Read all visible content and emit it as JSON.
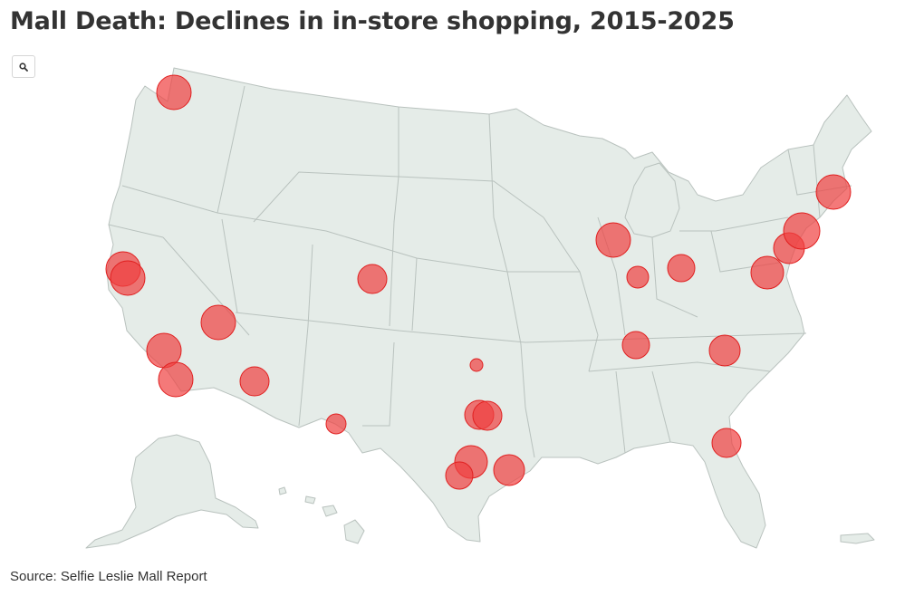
{
  "title": "Mall Death: Declines in in-store shopping, 2015-2025",
  "search_icon": "search-icon",
  "source": "Source: Selfie Leslie Mall Report",
  "colors": {
    "land": "#e5ece8",
    "state_border": "#b9c2be",
    "bubble": "#f04040",
    "bubble_stroke": "#e02020"
  },
  "map": {
    "region": "United States",
    "bubbles": [
      {
        "id": "seattle",
        "size": 3
      },
      {
        "id": "san-francisco",
        "size": 3
      },
      {
        "id": "san-jose",
        "size": 3
      },
      {
        "id": "las-vegas",
        "size": 3
      },
      {
        "id": "los-angeles",
        "size": 3
      },
      {
        "id": "san-diego",
        "size": 3
      },
      {
        "id": "phoenix",
        "size": 2.6
      },
      {
        "id": "denver",
        "size": 2.6
      },
      {
        "id": "el-paso",
        "size": 1.6
      },
      {
        "id": "oklahoma-city",
        "size": 1
      },
      {
        "id": "fort-worth",
        "size": 2.6
      },
      {
        "id": "dallas",
        "size": 2.6
      },
      {
        "id": "austin",
        "size": 3
      },
      {
        "id": "san-antonio",
        "size": 2.6
      },
      {
        "id": "houston",
        "size": 3
      },
      {
        "id": "chicago",
        "size": 3
      },
      {
        "id": "indianapolis",
        "size": 2
      },
      {
        "id": "columbus",
        "size": 2.5
      },
      {
        "id": "nashville",
        "size": 2.6
      },
      {
        "id": "charlotte",
        "size": 2.8
      },
      {
        "id": "jacksonville",
        "size": 2.7
      },
      {
        "id": "washington-dc",
        "size": 3
      },
      {
        "id": "philadelphia",
        "size": 3
      },
      {
        "id": "new-york",
        "size": 3.3
      },
      {
        "id": "boston",
        "size": 3
      }
    ]
  }
}
